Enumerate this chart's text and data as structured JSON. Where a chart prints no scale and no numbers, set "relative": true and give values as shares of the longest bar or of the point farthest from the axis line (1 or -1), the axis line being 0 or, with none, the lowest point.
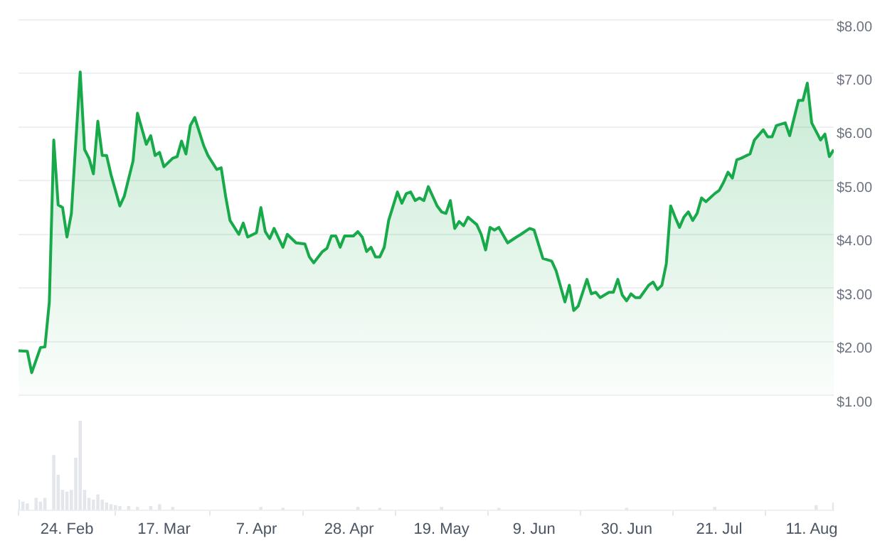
{
  "chart_data": [
    {
      "type": "area",
      "xlim": [
        "--02-13",
        "--08-16"
      ],
      "ylim": [
        1,
        8
      ],
      "yticks": [
        {
          "value": 1,
          "label": "$1.00"
        },
        {
          "value": 2,
          "label": "$2.00"
        },
        {
          "value": 3,
          "label": "$3.00"
        },
        {
          "value": 4,
          "label": "$4.00"
        },
        {
          "value": 5,
          "label": "$5.00"
        },
        {
          "value": 6,
          "label": "$6.00"
        },
        {
          "value": 7,
          "label": "$7.00"
        },
        {
          "value": 8,
          "label": "$8.00"
        }
      ],
      "xticks": [
        {
          "value": "--02-24",
          "label": null
        },
        {
          "value": "--03-17",
          "label": null
        },
        {
          "value": "--04-07",
          "label": null
        },
        {
          "value": "--04-28",
          "label": null
        },
        {
          "value": "--05-19",
          "label": null
        },
        {
          "value": "--06-09",
          "label": null
        },
        {
          "value": "--06-30",
          "label": null
        },
        {
          "value": "--07-21",
          "label": null
        },
        {
          "value": "--08-11",
          "label": null
        }
      ],
      "tick_labels": "y",
      "grid": "y",
      "legend": false,
      "series": [
        {
          "color": "#18a94a",
          "x": [
            "--02-13",
            "--02-15",
            "--02-16",
            "--02-18",
            "--02-19",
            "--02-20",
            "--02-21",
            "--02-22",
            "--02-23",
            "--02-24",
            "--02-25",
            "--02-27",
            "--02-28",
            "--02-29",
            "--03-01",
            "--03-02",
            "--03-03",
            "--03-04",
            "--03-05",
            "--03-07",
            "--03-08",
            "--03-10",
            "--03-11",
            "--03-13",
            "--03-14",
            "--03-15",
            "--03-16",
            "--03-17",
            "--03-19",
            "--03-20",
            "--03-21",
            "--03-22",
            "--03-23",
            "--03-24",
            "--03-26",
            "--03-27",
            "--03-29",
            "--03-30",
            "--03-31",
            "--04-01",
            "--04-03",
            "--04-04",
            "--04-05",
            "--04-07",
            "--04-08",
            "--04-09",
            "--04-10",
            "--04-11",
            "--04-13",
            "--04-14",
            "--04-16",
            "--04-18",
            "--04-19",
            "--04-20",
            "--04-22",
            "--04-23",
            "--04-24",
            "--04-25",
            "--04-26",
            "--04-27",
            "--04-29",
            "--04-30",
            "--05-01",
            "--05-02",
            "--05-03",
            "--05-04",
            "--05-05",
            "--05-06",
            "--05-07",
            "--05-09",
            "--05-10",
            "--05-11",
            "--05-12",
            "--05-13",
            "--05-14",
            "--05-15",
            "--05-16",
            "--05-18",
            "--05-19",
            "--05-20",
            "--05-21",
            "--05-22",
            "--05-23",
            "--05-24",
            "--05-25",
            "--05-27",
            "--05-28",
            "--05-29",
            "--05-30",
            "--05-31",
            "--06-01",
            "--06-03",
            "--06-05",
            "--06-06",
            "--06-08",
            "--06-09",
            "--06-11",
            "--06-13",
            "--06-14",
            "--06-16",
            "--06-17",
            "--06-18",
            "--06-19",
            "--06-21",
            "--06-22",
            "--06-23",
            "--06-24",
            "--06-26",
            "--06-27",
            "--06-28",
            "--06-29",
            "--06-30",
            "--07-01",
            "--07-02",
            "--07-03",
            "--07-05",
            "--07-06",
            "--07-07",
            "--07-08",
            "--07-09",
            "--07-10",
            "--07-11",
            "--07-12",
            "--07-13",
            "--07-14",
            "--07-15",
            "--07-16",
            "--07-17",
            "--07-18",
            "--07-20",
            "--07-21",
            "--07-22",
            "--07-23",
            "--07-24",
            "--07-25",
            "--07-26",
            "--07-28",
            "--07-29",
            "--07-31",
            "--08-01",
            "--08-02",
            "--08-03",
            "--08-05",
            "--08-06",
            "--08-08",
            "--08-09",
            "--08-10",
            "--08-11",
            "--08-13",
            "--08-14",
            "--08-15",
            "--08-16"
          ],
          "values": [
            1.83,
            1.82,
            1.42,
            1.89,
            1.9,
            2.74,
            5.76,
            4.55,
            4.5,
            3.95,
            4.39,
            7.03,
            5.58,
            5.42,
            5.13,
            6.11,
            5.47,
            5.47,
            5.11,
            4.53,
            4.71,
            5.37,
            6.26,
            5.68,
            5.84,
            5.47,
            5.53,
            5.26,
            5.42,
            5.45,
            5.74,
            5.5,
            6.03,
            6.18,
            5.66,
            5.47,
            5.21,
            5.24,
            4.71,
            4.26,
            4.0,
            4.21,
            3.95,
            4.03,
            4.5,
            4.05,
            3.92,
            4.11,
            3.76,
            4.0,
            3.84,
            3.82,
            3.58,
            3.47,
            3.68,
            3.74,
            3.97,
            3.97,
            3.76,
            3.97,
            3.97,
            4.05,
            3.95,
            3.68,
            3.76,
            3.58,
            3.58,
            3.76,
            4.26,
            4.79,
            4.58,
            4.76,
            4.79,
            4.63,
            4.68,
            4.63,
            4.89,
            4.53,
            4.42,
            4.39,
            4.63,
            4.11,
            4.24,
            4.16,
            4.32,
            4.18,
            4.0,
            3.71,
            4.13,
            4.08,
            4.13,
            3.84,
            3.95,
            4.0,
            4.11,
            4.08,
            3.55,
            3.5,
            3.32,
            2.74,
            3.05,
            2.58,
            2.66,
            3.16,
            2.89,
            2.92,
            2.82,
            2.92,
            2.92,
            3.16,
            2.87,
            2.76,
            2.89,
            2.82,
            2.82,
            3.05,
            3.11,
            2.97,
            3.05,
            3.45,
            4.53,
            4.32,
            4.13,
            4.32,
            4.42,
            4.26,
            4.39,
            4.68,
            4.61,
            4.76,
            4.82,
            4.97,
            5.16,
            5.05,
            5.39,
            5.42,
            5.5,
            5.76,
            5.95,
            5.82,
            5.82,
            6.03,
            6.08,
            5.84,
            6.5,
            6.5,
            6.82,
            6.08,
            5.76,
            5.87,
            5.45,
            5.58
          ]
        }
      ]
    },
    {
      "type": "bar",
      "relative": true,
      "xlim": [
        "--02-13",
        "--08-16"
      ],
      "xticks": [
        {
          "value": "--02-24",
          "label": "24. Feb"
        },
        {
          "value": "--03-17",
          "label": "17. Mar"
        },
        {
          "value": "--04-07",
          "label": "7. Apr"
        },
        {
          "value": "--04-28",
          "label": "28. Apr"
        },
        {
          "value": "--05-19",
          "label": "19. May"
        },
        {
          "value": "--06-09",
          "label": "9. Jun"
        },
        {
          "value": "--06-30",
          "label": "30. Jun"
        },
        {
          "value": "--07-21",
          "label": "21. Jul"
        },
        {
          "value": "--08-11",
          "label": "11. Aug"
        }
      ],
      "tick_labels": "x",
      "legend": false,
      "series": [
        {
          "color": "#e3e6ea",
          "x": [
            "--02-13",
            "--02-14",
            "--02-15",
            "--02-17",
            "--02-18",
            "--02-19",
            "--02-21",
            "--02-22",
            "--02-23",
            "--02-24",
            "--02-25",
            "--02-26",
            "--02-27",
            "--02-28",
            "--02-29",
            "--03-01",
            "--03-02",
            "--03-03",
            "--03-04",
            "--03-05",
            "--03-06",
            "--03-07",
            "--03-09",
            "--03-11",
            "--03-14",
            "--03-16",
            "--03-19",
            "--04-08",
            "--04-13",
            "--04-30",
            "--05-05",
            "--05-19",
            "--06-01",
            "--06-30",
            "--07-20",
            "--08-12",
            "--08-16"
          ],
          "values": [
            0.11,
            0.09,
            0.07,
            0.13,
            0.09,
            0.13,
            0.61,
            0.39,
            0.22,
            0.2,
            0.22,
            0.58,
            1,
            0.22,
            0.13,
            0.11,
            0.17,
            0.11,
            0.08,
            0.06,
            0.05,
            0.04,
            0.04,
            0.03,
            0.04,
            0.06,
            0.03,
            0.03,
            0.02,
            0.03,
            0.02,
            0.03,
            0.02,
            0.02,
            0.03,
            0.05,
            0.08
          ]
        }
      ]
    }
  ]
}
